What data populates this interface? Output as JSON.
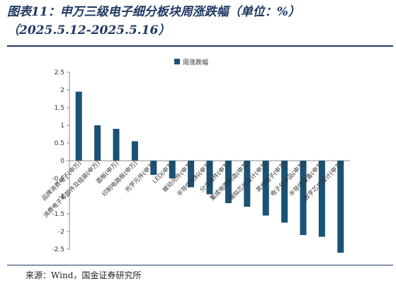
{
  "header": {
    "title_line1": "图表11：申万三级电子细分板块周涨跌幅（单位：%）",
    "title_line2": "（2025.5.12-2025.5.16）"
  },
  "footer": {
    "source": "来源：Wind，国金证券研究所"
  },
  "colors": {
    "bar": "#1a5276",
    "rule": "#1f3864",
    "axis": "#8c8c8c"
  },
  "chart_data": {
    "type": "bar",
    "series": [
      {
        "name": "周涨跌幅"
      }
    ],
    "categories": [
      "品牌消费电子(申万)",
      "消费电子零部件及组装(申万)",
      "面板(申万)",
      "印制电路板(申万)",
      "光学元件(申万)",
      "LED(申万)",
      "被动元件(申万)",
      "半导体材料(申万)",
      "分立器件(申万)",
      "集成电路制造(申万)",
      "模拟芯片设计(申万)",
      "其他电子(申万)",
      "电子化学品(申万)",
      "半导体设备(申万)",
      "数字芯片设计(申万)"
    ],
    "values": [
      1.95,
      1.0,
      0.9,
      0.55,
      -0.4,
      -0.5,
      -0.75,
      -0.95,
      -1.2,
      -1.3,
      -1.55,
      -1.75,
      -2.1,
      -2.15,
      -2.6
    ],
    "ylim": [
      -2.5,
      2.5
    ],
    "yticks": [
      "2.5",
      "2",
      "1.5",
      "1",
      "0.5",
      "0",
      "-0.5",
      "-1",
      "-1.5",
      "-2",
      "-2.5"
    ],
    "legend_position": "top-center",
    "grid": false
  }
}
